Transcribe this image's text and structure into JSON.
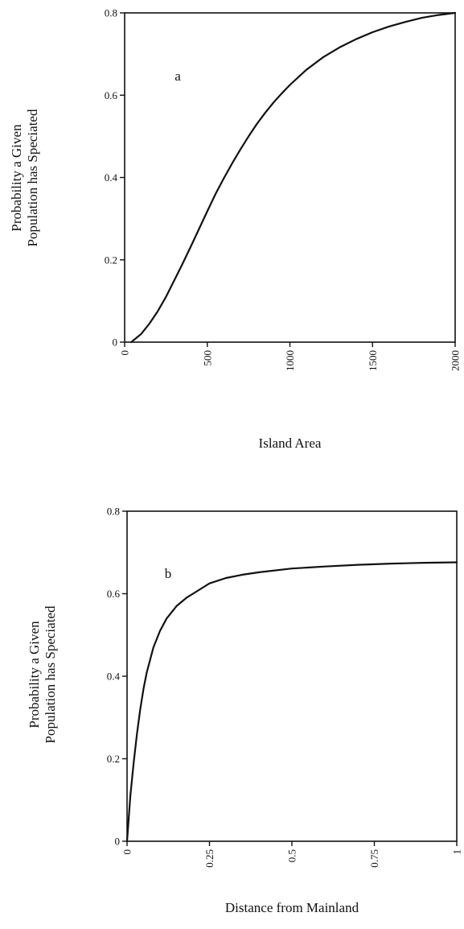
{
  "chart_data": [
    {
      "type": "line",
      "panel_label": "a",
      "xlabel": "Island Area",
      "ylabel_line1": "Probability a Given",
      "ylabel_line2": "Population has Speciated",
      "xlim": [
        0,
        2000
      ],
      "ylim": [
        0,
        0.8
      ],
      "xticks": [
        0,
        500,
        1000,
        1500,
        2000
      ],
      "xtick_labels": [
        "0",
        "500",
        "1000",
        "1500",
        "2000"
      ],
      "yticks": [
        0,
        0.2,
        0.4,
        0.6,
        0.8
      ],
      "ytick_labels": [
        "0",
        "0.2",
        "0.4",
        "0.6",
        "0.8"
      ],
      "grid": false,
      "series": [
        {
          "x": [
            40,
            100,
            150,
            200,
            250,
            300,
            350,
            400,
            450,
            500,
            550,
            600,
            650,
            700,
            750,
            800,
            850,
            900,
            950,
            1000,
            1100,
            1200,
            1300,
            1400,
            1500,
            1600,
            1700,
            1800,
            1900,
            2000
          ],
          "y": [
            0.0,
            0.02,
            0.045,
            0.075,
            0.11,
            0.15,
            0.19,
            0.232,
            0.275,
            0.318,
            0.36,
            0.398,
            0.434,
            0.468,
            0.5,
            0.53,
            0.557,
            0.582,
            0.604,
            0.625,
            0.662,
            0.692,
            0.716,
            0.736,
            0.753,
            0.767,
            0.778,
            0.788,
            0.795,
            0.8
          ]
        }
      ]
    },
    {
      "type": "line",
      "panel_label": "b",
      "xlabel": "Distance from Mainland",
      "ylabel_line1": "Probability a Given",
      "ylabel_line2": "Population has Speciated",
      "xlim": [
        0,
        1
      ],
      "ylim": [
        0,
        0.8
      ],
      "xticks": [
        0,
        0.25,
        0.5,
        0.75,
        1
      ],
      "xtick_labels": [
        "0",
        "0.25",
        "0.5",
        "0.75",
        "1"
      ],
      "yticks": [
        0,
        0.2,
        0.4,
        0.6,
        0.8
      ],
      "ytick_labels": [
        "0",
        "0.2",
        "0.4",
        "0.6",
        "0.8"
      ],
      "grid": false,
      "series": [
        {
          "x": [
            0,
            0.01,
            0.02,
            0.03,
            0.04,
            0.05,
            0.06,
            0.08,
            0.1,
            0.12,
            0.15,
            0.18,
            0.2,
            0.25,
            0.3,
            0.35,
            0.4,
            0.5,
            0.6,
            0.7,
            0.8,
            0.9,
            1.0
          ],
          "y": [
            0.0,
            0.11,
            0.19,
            0.26,
            0.32,
            0.37,
            0.41,
            0.47,
            0.51,
            0.54,
            0.57,
            0.59,
            0.6,
            0.625,
            0.638,
            0.646,
            0.652,
            0.661,
            0.666,
            0.67,
            0.673,
            0.675,
            0.676
          ]
        }
      ]
    }
  ]
}
